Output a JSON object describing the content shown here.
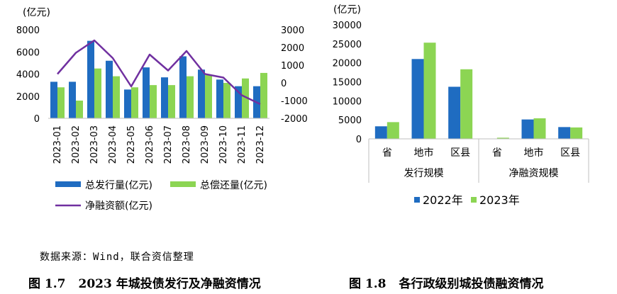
{
  "chart_data": [
    {
      "type": "bar+line",
      "unit_label": "(亿元)",
      "categories": [
        "2023-01",
        "2023-02",
        "2023-03",
        "2023-04",
        "2023-05",
        "2023-06",
        "2023-07",
        "2023-08",
        "2023-09",
        "2023-10",
        "2023-11",
        "2023-12"
      ],
      "series": [
        {
          "name": "总发行量(亿元)",
          "type": "bar",
          "axis": "left",
          "color": "#1f6cc1",
          "values": [
            3300,
            3300,
            7000,
            5200,
            2600,
            4600,
            3700,
            5600,
            4400,
            3500,
            2900,
            2900
          ]
        },
        {
          "name": "总偿还量(亿元)",
          "type": "bar",
          "axis": "left",
          "color": "#8cd553",
          "values": [
            2800,
            1600,
            4500,
            3800,
            2800,
            3000,
            3000,
            3800,
            3900,
            3200,
            3600,
            4100
          ]
        },
        {
          "name": "净融资额(亿元)",
          "type": "line",
          "axis": "right",
          "color": "#7030a0",
          "values": [
            500,
            1700,
            2400,
            1400,
            -200,
            1600,
            700,
            1800,
            500,
            300,
            -700,
            -1200
          ]
        }
      ],
      "ylim_left": [
        0,
        8000
      ],
      "yticks_left": [
        0,
        2000,
        4000,
        6000,
        8000
      ],
      "ylim_right": [
        -2000,
        3000
      ],
      "yticks_right": [
        -2000,
        -1000,
        0,
        1000,
        2000,
        3000
      ],
      "grid": false,
      "legend_position": "bottom"
    },
    {
      "type": "bar",
      "unit_label": "(亿元)",
      "groups": [
        {
          "label": "发行规模",
          "categories": [
            "省",
            "地市",
            "区县"
          ]
        },
        {
          "label": "净融资规模",
          "categories": [
            "省",
            "地市",
            "区县"
          ]
        }
      ],
      "series": [
        {
          "name": "2022年",
          "color": "#1f6cc1",
          "values": [
            3300,
            21000,
            13700,
            0,
            5100,
            3100
          ]
        },
        {
          "name": "2023年",
          "color": "#8cd553",
          "values": [
            4400,
            25300,
            18300,
            300,
            5400,
            3000
          ]
        }
      ],
      "ylim": [
        0,
        30000
      ],
      "yticks": [
        0,
        5000,
        10000,
        15000,
        20000,
        25000,
        30000
      ],
      "grid": false,
      "legend_position": "bottom"
    }
  ],
  "source_note": "数据来源：Wind，联合资信整理",
  "captions": [
    {
      "number": "图 1.7",
      "text": "2023 年城投债发行及净融资情况"
    },
    {
      "number": "图 1.8",
      "text": "各行政级别城投债融资情况"
    }
  ]
}
